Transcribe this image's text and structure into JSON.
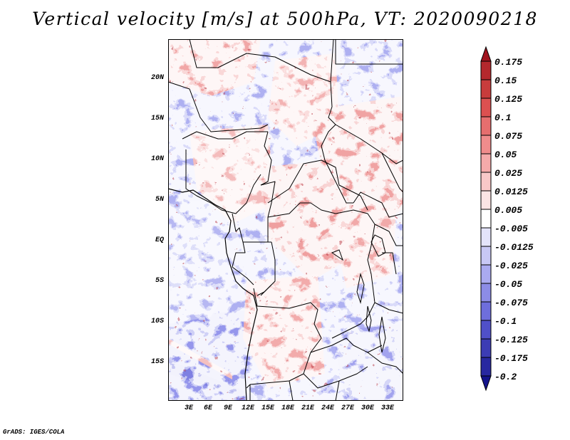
{
  "title": "Vertical velocity [m/s] at 500hPa, VT: 2020090218",
  "footer": "GrADS: IGES/COLA",
  "map": {
    "region": "Central Africa",
    "lat_labels": [
      "20N",
      "15N",
      "10N",
      "5N",
      "EQ",
      "5S",
      "10S",
      "15S"
    ],
    "lon_labels": [
      "3E",
      "6E",
      "9E",
      "12E",
      "15E",
      "18E",
      "21E",
      "24E",
      "27E",
      "30E",
      "33E"
    ]
  },
  "colorbar": {
    "levels": [
      "0.175",
      "0.15",
      "0.125",
      "0.1",
      "0.075",
      "0.05",
      "0.025",
      "0.0125",
      "0.005",
      "-0.005",
      "-0.0125",
      "-0.025",
      "-0.05",
      "-0.075",
      "-0.1",
      "-0.125",
      "-0.175",
      "-0.2"
    ],
    "colors": [
      "#a0141e",
      "#b4282d",
      "#c83c3c",
      "#dc5050",
      "#e66e6e",
      "#f08c8c",
      "#f5aaaa",
      "#f8c8c8",
      "#fbe4e4",
      "#ffffff",
      "#e4e4fb",
      "#c8c8f5",
      "#aaaaf0",
      "#8c8ce6",
      "#6e6edc",
      "#5050c8",
      "#3c3cb4",
      "#2828a0",
      "#14148c"
    ]
  }
}
